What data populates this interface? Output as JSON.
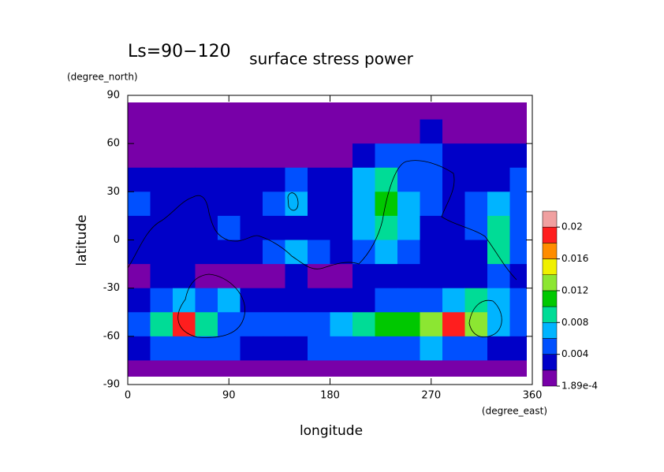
{
  "chart_data": {
    "type": "contour",
    "title": "surface stress power",
    "annotation": "Ls=90−120",
    "x_label": "longitude",
    "x_unit": "(degree_east)",
    "y_label": "latitude",
    "y_unit": "(degree_north)",
    "xlim": [
      0,
      360
    ],
    "xticks": [
      0,
      90,
      180,
      270,
      360
    ],
    "ylim": [
      -90,
      90
    ],
    "yticks": [
      -90,
      -60,
      -30,
      0,
      30,
      60,
      90
    ],
    "x": [
      10,
      30,
      50,
      70,
      90,
      110,
      130,
      150,
      170,
      190,
      210,
      230,
      250,
      270,
      290,
      310,
      330,
      350
    ],
    "y": [
      82.5,
      67.5,
      52.5,
      37.5,
      22.5,
      7.5,
      -7.5,
      -22.5,
      -37.5,
      -52.5,
      -67.5,
      -82.5
    ],
    "z": [
      [
        0.001,
        0.001,
        0.001,
        0.001,
        0.001,
        0.001,
        0.001,
        0.001,
        0.001,
        0.001,
        0.001,
        0.001,
        0.001,
        0.001,
        0.001,
        0.001,
        0.001,
        0.001
      ],
      [
        0.001,
        0.001,
        0.001,
        0.001,
        0.001,
        0.001,
        0.001,
        0.001,
        0.001,
        0.001,
        0.001,
        0.001,
        0.001,
        0.003,
        0.001,
        0.001,
        0.001,
        0.001
      ],
      [
        0.001,
        0.001,
        0.001,
        0.001,
        0.001,
        0.001,
        0.001,
        0.001,
        0.001,
        0.001,
        0.003,
        0.005,
        0.004,
        0.005,
        0.003,
        0.003,
        0.002,
        0.002
      ],
      [
        0.003,
        0.003,
        0.003,
        0.002,
        0.003,
        0.003,
        0.003,
        0.005,
        0.003,
        0.003,
        0.006,
        0.009,
        0.005,
        0.005,
        0.003,
        0.003,
        0.003,
        0.004
      ],
      [
        0.005,
        0.003,
        0.003,
        0.002,
        0.003,
        0.003,
        0.004,
        0.006,
        0.003,
        0.003,
        0.007,
        0.011,
        0.007,
        0.004,
        0.003,
        0.005,
        0.007,
        0.005
      ],
      [
        0.003,
        0.003,
        0.003,
        0.003,
        0.004,
        0.003,
        0.003,
        0.003,
        0.003,
        0.003,
        0.006,
        0.009,
        0.006,
        0.003,
        0.003,
        0.004,
        0.008,
        0.004
      ],
      [
        0.003,
        0.003,
        0.003,
        0.003,
        0.003,
        0.003,
        0.004,
        0.007,
        0.005,
        0.003,
        0.005,
        0.007,
        0.004,
        0.003,
        0.003,
        0.003,
        0.008,
        0.005
      ],
      [
        0.001,
        0.003,
        0.003,
        0.001,
        0.001,
        0.001,
        0.001,
        0.003,
        0.001,
        0.001,
        0.003,
        0.003,
        0.003,
        0.003,
        0.003,
        0.003,
        0.005,
        0.003
      ],
      [
        0.003,
        0.004,
        0.007,
        0.005,
        0.006,
        0.003,
        0.003,
        0.003,
        0.003,
        0.003,
        0.003,
        0.004,
        0.005,
        0.005,
        0.006,
        0.008,
        0.007,
        0.005
      ],
      [
        0.004,
        0.009,
        0.019,
        0.008,
        0.005,
        0.004,
        0.004,
        0.004,
        0.005,
        0.007,
        0.008,
        0.01,
        0.011,
        0.013,
        0.019,
        0.013,
        0.006,
        0.004
      ],
      [
        0.003,
        0.004,
        0.005,
        0.004,
        0.004,
        0.003,
        0.003,
        0.003,
        0.004,
        0.004,
        0.005,
        0.005,
        0.005,
        0.006,
        0.005,
        0.004,
        0.003,
        0.003
      ],
      [
        0.001,
        0.001,
        0.001,
        0.001,
        0.001,
        0.001,
        0.001,
        0.001,
        0.001,
        0.001,
        0.001,
        0.001,
        0.001,
        0.001,
        0.001,
        0.001,
        0.001,
        0.001
      ]
    ],
    "levels": [
      0.000189,
      0.002,
      0.004,
      0.006,
      0.008,
      0.01,
      0.012,
      0.014,
      0.016,
      0.018,
      0.02,
      0.022
    ],
    "colors": [
      "#7800a8",
      "#0000c8",
      "#0050ff",
      "#00b4ff",
      "#00dc96",
      "#00c800",
      "#8ce632",
      "#f0f000",
      "#ff8c00",
      "#ff1e1e",
      "#f0a0a0"
    ],
    "colorbar_ticks": [
      {
        "value": 0.000189,
        "label": "1.89e-4"
      },
      0.004,
      0.008,
      0.012,
      0.016,
      0.02
    ]
  }
}
